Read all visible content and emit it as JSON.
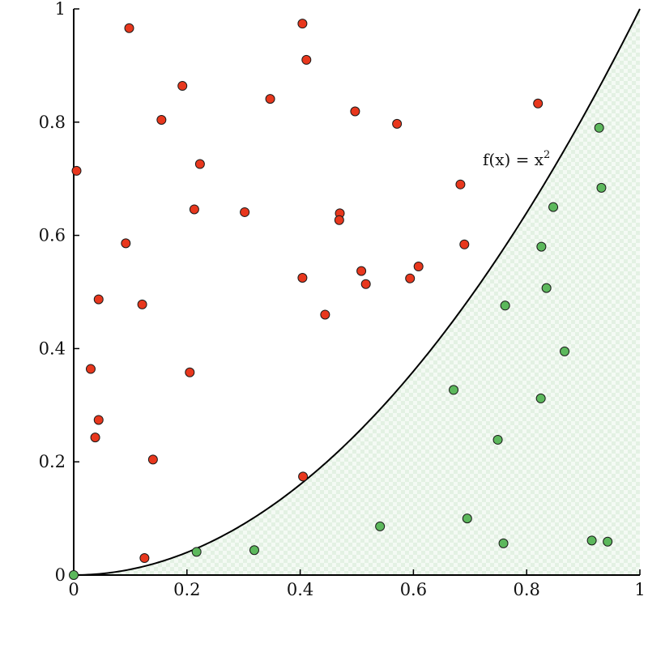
{
  "chart_data": {
    "type": "scatter",
    "title": "",
    "xlabel": "",
    "ylabel": "",
    "xlim": [
      0,
      1
    ],
    "ylim": [
      0,
      1
    ],
    "grid": false,
    "x_ticks": [
      "0",
      "0.2",
      "0.4",
      "0.6",
      "0.8",
      "1"
    ],
    "y_ticks": [
      "0",
      "0.2",
      "0.4",
      "0.6",
      "0.8",
      "1"
    ],
    "curve": {
      "label": "f(x) = x",
      "label_exponent": "2",
      "exponent": 2,
      "color": "#000000"
    },
    "shaded_region": {
      "description": "area under curve",
      "color": "#e6f3e6"
    },
    "series": [
      {
        "key": "above",
        "color": "#e8371d",
        "points": [
          [
            0.005,
            0.714
          ],
          [
            0.098,
            0.966
          ],
          [
            0.192,
            0.864
          ],
          [
            0.155,
            0.804
          ],
          [
            0.223,
            0.726
          ],
          [
            0.092,
            0.586
          ],
          [
            0.213,
            0.646
          ],
          [
            0.044,
            0.487
          ],
          [
            0.121,
            0.478
          ],
          [
            0.03,
            0.364
          ],
          [
            0.205,
            0.358
          ],
          [
            0.044,
            0.274
          ],
          [
            0.038,
            0.243
          ],
          [
            0.14,
            0.204
          ],
          [
            0.125,
            0.03
          ],
          [
            0.404,
            0.974
          ],
          [
            0.411,
            0.91
          ],
          [
            0.347,
            0.841
          ],
          [
            0.497,
            0.819
          ],
          [
            0.571,
            0.797
          ],
          [
            0.82,
            0.833
          ],
          [
            0.683,
            0.69
          ],
          [
            0.302,
            0.641
          ],
          [
            0.47,
            0.639
          ],
          [
            0.469,
            0.627
          ],
          [
            0.69,
            0.584
          ],
          [
            0.508,
            0.537
          ],
          [
            0.609,
            0.545
          ],
          [
            0.404,
            0.525
          ],
          [
            0.516,
            0.514
          ],
          [
            0.594,
            0.524
          ],
          [
            0.444,
            0.46
          ],
          [
            0.405,
            0.174
          ]
        ]
      },
      {
        "key": "below",
        "color": "#5cb85c",
        "points": [
          [
            0.0,
            0.0
          ],
          [
            0.217,
            0.041
          ],
          [
            0.319,
            0.044
          ],
          [
            0.541,
            0.086
          ],
          [
            0.695,
            0.1
          ],
          [
            0.759,
            0.056
          ],
          [
            0.915,
            0.061
          ],
          [
            0.943,
            0.059
          ],
          [
            0.671,
            0.327
          ],
          [
            0.749,
            0.239
          ],
          [
            0.825,
            0.312
          ],
          [
            0.867,
            0.395
          ],
          [
            0.762,
            0.476
          ],
          [
            0.835,
            0.507
          ],
          [
            0.826,
            0.58
          ],
          [
            0.847,
            0.65
          ],
          [
            0.932,
            0.684
          ],
          [
            0.928,
            0.79
          ]
        ]
      }
    ]
  }
}
